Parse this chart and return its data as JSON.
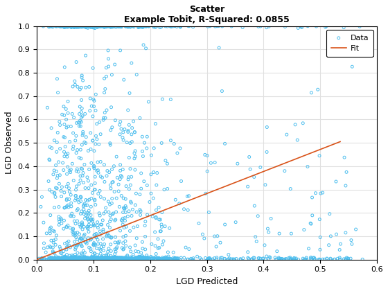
{
  "title_line1": "Scatter",
  "title_line2": "Example Tobit, R-Squared: 0.0855",
  "xlabel": "LGD Predicted",
  "ylabel": "LGD Observed",
  "xlim": [
    0,
    0.6
  ],
  "ylim": [
    0,
    1.0
  ],
  "xticks": [
    0,
    0.1,
    0.2,
    0.3,
    0.4,
    0.5,
    0.6
  ],
  "yticks": [
    0,
    0.1,
    0.2,
    0.3,
    0.4,
    0.5,
    0.6,
    0.7,
    0.8,
    0.9,
    1.0
  ],
  "scatter_color": "#4DBEEE",
  "scatter_facecolor": "none",
  "scatter_size": 8,
  "scatter_linewidth": 0.7,
  "fit_color": "#D95319",
  "fit_x": [
    0.0,
    0.535
  ],
  "fit_y": [
    0.0,
    0.505
  ],
  "background_color": "#FFFFFF",
  "grid_color": "#E0E0E0",
  "legend_labels": [
    "Data",
    "Fit"
  ],
  "seed": 42,
  "n_points": 2000
}
